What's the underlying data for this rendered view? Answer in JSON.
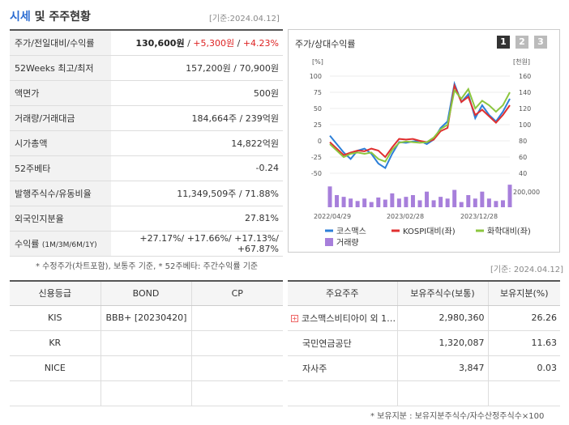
{
  "header": {
    "title_blue": "시세",
    "title_rest": "및 주주현황",
    "date": "[기준:2024.04.12]"
  },
  "info": {
    "price_label": "주가/전일대비/수익률",
    "price": "130,600원",
    "change": "+5,300원",
    "change_pct": "+4.23%",
    "w52_label": "52Weeks 최고/최저",
    "w52": "157,200원 / 70,900원",
    "par_label": "액면가",
    "par": "500원",
    "vol_label": "거래량/거래대금",
    "vol": "184,664주 / 239억원",
    "mcap_label": "시가총액",
    "mcap": "14,822억원",
    "beta_label": "52주베타",
    "beta": "-0.24",
    "shares_label": "발행주식수/유동비율",
    "shares": "11,349,509주 / 71.88%",
    "foreign_label": "외국인지분율",
    "foreign": "27.81%",
    "ret_label": "수익률",
    "ret_sub": "(1M/3M/6M/1Y)",
    "ret1": "+27.17%",
    "ret2": "+17.66%",
    "ret3": "+17.13%",
    "ret4": "+67.87%"
  },
  "note1": "* 수정주가(차트포함), 보통주 기준, * 52주베타: 주간수익률 기준",
  "chart_panel": {
    "title": "주가/상대수익률",
    "tabs": [
      "1",
      "2",
      "3"
    ]
  },
  "chart_data": {
    "type": "line",
    "left_axis_label": "[%]",
    "right_axis_label": "[천원]",
    "left_ticks": [
      "100",
      "75",
      "50",
      "25",
      "0",
      "-25",
      "-50"
    ],
    "right_ticks": [
      "160",
      "140",
      "120",
      "100",
      "80",
      "60",
      "40"
    ],
    "vol_tick": "200,000",
    "x_ticks": [
      "2022/04/29",
      "2023/02/28",
      "2023/12/28"
    ],
    "ylim_left": [
      -50,
      100
    ],
    "series": [
      {
        "name": "코스맥스",
        "color": "#2d7fd8",
        "values": [
          8,
          -5,
          -18,
          -28,
          -15,
          -12,
          -20,
          -35,
          -42,
          -20,
          -2,
          -3,
          -1,
          0,
          -5,
          2,
          20,
          30,
          88,
          60,
          72,
          35,
          55,
          40,
          30,
          45,
          65
        ]
      },
      {
        "name": "KOSPI대비(좌)",
        "color": "#e03030",
        "values": [
          -2,
          -12,
          -22,
          -18,
          -15,
          -16,
          -12,
          -15,
          -25,
          -10,
          3,
          2,
          3,
          0,
          -2,
          2,
          15,
          20,
          85,
          60,
          68,
          40,
          48,
          38,
          28,
          40,
          55
        ]
      },
      {
        "name": "화학대비(좌)",
        "color": "#8cc63f",
        "values": [
          -5,
          -15,
          -25,
          -20,
          -18,
          -20,
          -18,
          -28,
          -32,
          -14,
          -3,
          -1,
          -2,
          -3,
          -2,
          5,
          18,
          25,
          78,
          65,
          80,
          50,
          62,
          55,
          45,
          55,
          75
        ]
      }
    ],
    "volume": {
      "name": "거래량",
      "color": "#a77fdb",
      "values": [
        60,
        35,
        30,
        25,
        18,
        25,
        15,
        28,
        22,
        40,
        25,
        30,
        35,
        20,
        45,
        20,
        30,
        25,
        50,
        15,
        35,
        25,
        45,
        25,
        18,
        20,
        65
      ]
    }
  },
  "credit": {
    "headers": [
      "신용등급",
      "BOND",
      "CP"
    ],
    "rows": [
      [
        "KIS",
        "BBB+  [20230420]",
        ""
      ],
      [
        "KR",
        "",
        ""
      ],
      [
        "NICE",
        "",
        ""
      ],
      [
        "",
        "",
        ""
      ]
    ]
  },
  "date2": "[기준: 2024.04.12]",
  "holders": {
    "headers": [
      "주요주주",
      "보유주식수(보통)",
      "보유지분(%)"
    ],
    "rows": [
      [
        "코스맥스비티아이 외 1…",
        "2,980,360",
        "26.26"
      ],
      [
        "국민연금공단",
        "1,320,087",
        "11.63"
      ],
      [
        "자사주",
        "3,847",
        "0.03"
      ],
      [
        "",
        "",
        ""
      ]
    ]
  },
  "note2": "* 보유지분 : 보유지분주식수/자수산정주식수×100"
}
